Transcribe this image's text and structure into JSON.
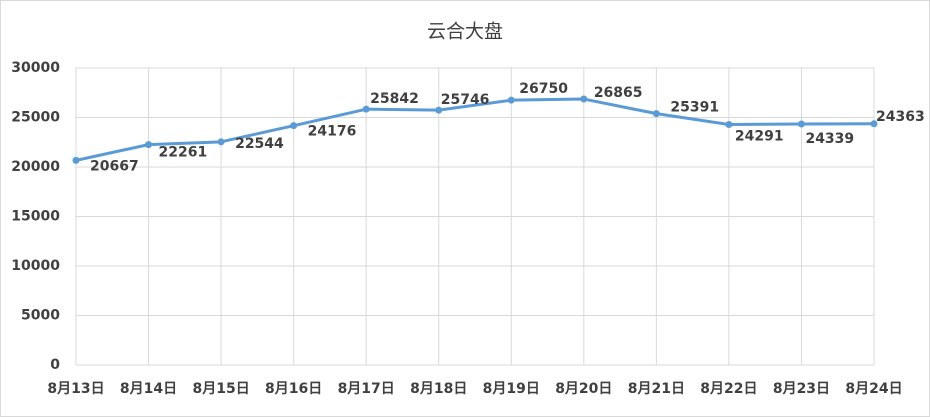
{
  "chart_data": {
    "type": "line",
    "title": "云合大盘",
    "categories": [
      "8月13日",
      "8月14日",
      "8月15日",
      "8月16日",
      "8月17日",
      "8月18日",
      "8月19日",
      "8月20日",
      "8月21日",
      "8月22日",
      "8月23日",
      "8月24日"
    ],
    "series": [
      {
        "name": "云合大盘",
        "color": "#5b9bd5",
        "values": [
          20667,
          22261,
          22544,
          24176,
          25842,
          25746,
          26750,
          26865,
          25391,
          24291,
          24339,
          24363
        ]
      }
    ],
    "ylim": [
      0,
      30000
    ],
    "yticks": [
      0,
      5000,
      10000,
      15000,
      20000,
      25000,
      30000
    ],
    "grid": true
  }
}
